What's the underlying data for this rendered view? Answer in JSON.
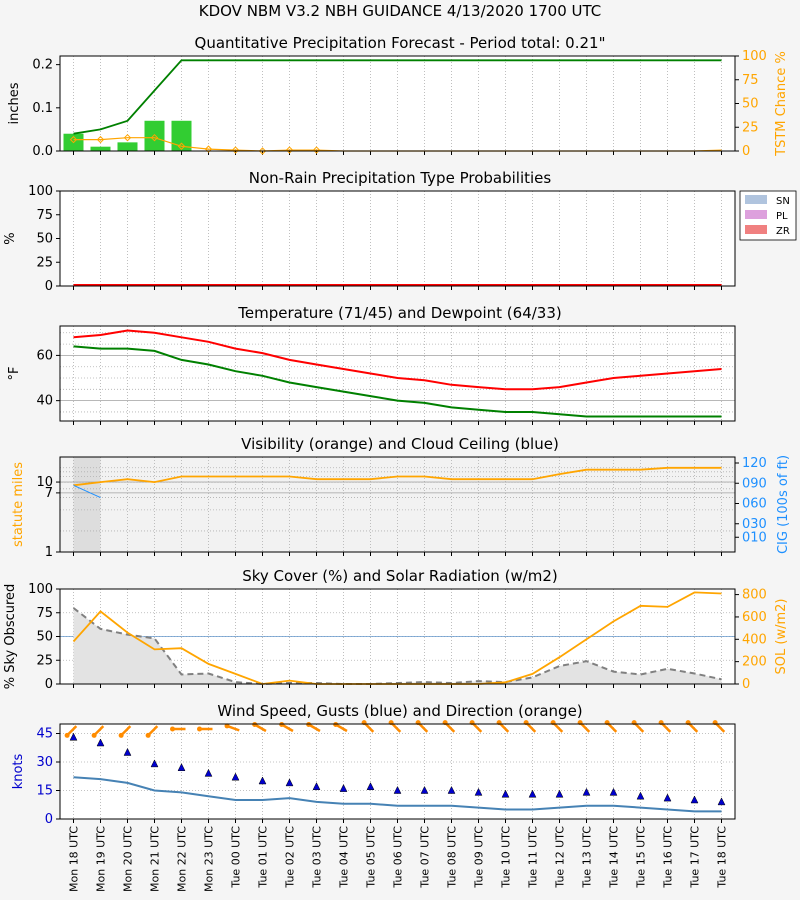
{
  "header": {
    "title": "KDOV   NBM V3.2 NBH GUIDANCE    4/13/2020  1700 UTC"
  },
  "colors": {
    "green": "#008000",
    "bar_green": "#32cd32",
    "orange": "#ffa500",
    "red": "#ff0000",
    "blue_axis": "#1e90ff",
    "navy": "#0000cd",
    "steel": "#4682b4",
    "gray_dash": "#808080",
    "sn": "#b0c4de",
    "pl": "#dda0dd",
    "zr": "#f08080"
  },
  "x_labels": [
    "Mon 18 UTC",
    "Mon 19 UTC",
    "Mon 20 UTC",
    "Mon 21 UTC",
    "Mon 22 UTC",
    "Mon 23 UTC",
    "Tue 00 UTC",
    "Tue 01 UTC",
    "Tue 02 UTC",
    "Tue 03 UTC",
    "Tue 04 UTC",
    "Tue 05 UTC",
    "Tue 06 UTC",
    "Tue 07 UTC",
    "Tue 08 UTC",
    "Tue 09 UTC",
    "Tue 10 UTC",
    "Tue 11 UTC",
    "Tue 12 UTC",
    "Tue 13 UTC",
    "Tue 14 UTC",
    "Tue 15 UTC",
    "Tue 16 UTC",
    "Tue 17 UTC",
    "Tue 18 UTC"
  ],
  "chart_data": [
    {
      "type": "bar",
      "title": "Quantitative Precipitation Forecast - Period total: 0.21\"",
      "ylabel": "inches",
      "ylabel_right": "TSTM Chance %",
      "ylim": [
        0,
        0.22
      ],
      "yticks": [
        "0.0",
        "0.1",
        "0.2"
      ],
      "ytick_vals": [
        0,
        0.1,
        0.2
      ],
      "ylim_right": [
        0,
        100
      ],
      "yticks_right": [
        "0",
        "25",
        "50",
        "75",
        "100"
      ],
      "series": [
        {
          "name": "QPF",
          "kind": "bar",
          "values": [
            0.04,
            0.01,
            0.02,
            0.07,
            0.07,
            0,
            0,
            0,
            0,
            0,
            0,
            0,
            0,
            0,
            0,
            0,
            0,
            0,
            0,
            0,
            0,
            0,
            0,
            0,
            0
          ]
        },
        {
          "name": "Accumulated",
          "kind": "line",
          "values": [
            0.04,
            0.05,
            0.07,
            0.14,
            0.21,
            0.21,
            0.21,
            0.21,
            0.21,
            0.21,
            0.21,
            0.21,
            0.21,
            0.21,
            0.21,
            0.21,
            0.21,
            0.21,
            0.21,
            0.21,
            0.21,
            0.21,
            0.21,
            0.21,
            0.21
          ]
        },
        {
          "name": "TSTM",
          "kind": "line-right",
          "values": [
            12,
            12,
            14,
            14,
            5,
            2,
            1,
            0,
            1,
            1,
            0,
            0,
            0,
            0,
            0,
            0,
            0,
            0,
            0,
            0,
            0,
            0,
            0,
            0,
            1
          ]
        }
      ]
    },
    {
      "type": "area",
      "title": "Non-Rain Precipitation Type Probabilities",
      "ylabel": "%",
      "ylim": [
        0,
        100
      ],
      "yticks": [
        "0",
        "25",
        "50",
        "75",
        "100"
      ],
      "legend": [
        "SN",
        "PL",
        "ZR"
      ],
      "legend_position": "right",
      "series": [
        {
          "name": "SN",
          "values": [
            0,
            0,
            0,
            0,
            0,
            0,
            0,
            0,
            0,
            0,
            0,
            0,
            0,
            0,
            0,
            0,
            0,
            0,
            0,
            0,
            0,
            0,
            0,
            0,
            0
          ]
        },
        {
          "name": "PL",
          "values": [
            0,
            0,
            0,
            0,
            0,
            0,
            0,
            0,
            0,
            0,
            0,
            0,
            0,
            0,
            0,
            0,
            0,
            0,
            0,
            0,
            0,
            0,
            0,
            0,
            0
          ]
        },
        {
          "name": "ZR",
          "values": [
            0,
            0,
            0,
            0,
            0,
            0,
            0,
            0,
            0,
            0,
            0,
            0,
            0,
            0,
            0,
            0,
            0,
            0,
            0,
            0,
            0,
            0,
            0,
            0,
            0
          ]
        }
      ]
    },
    {
      "type": "line",
      "title": "Temperature (71/45) and Dewpoint (64/33)",
      "ylabel": "°F",
      "ylim": [
        31,
        73
      ],
      "yticks": [
        "40",
        "60"
      ],
      "ytick_vals": [
        40,
        60
      ],
      "series": [
        {
          "name": "Temperature",
          "values": [
            68,
            69,
            71,
            70,
            68,
            66,
            63,
            61,
            58,
            56,
            54,
            52,
            50,
            49,
            47,
            46,
            45,
            45,
            46,
            48,
            50,
            51,
            52,
            53,
            54
          ]
        },
        {
          "name": "Dewpoint",
          "values": [
            64,
            63,
            63,
            62,
            58,
            56,
            53,
            51,
            48,
            46,
            44,
            42,
            40,
            39,
            37,
            36,
            35,
            35,
            34,
            33,
            33,
            33,
            33,
            33,
            33
          ]
        }
      ]
    },
    {
      "type": "line",
      "title": "Visibility (orange) and Cloud Ceiling (blue)",
      "ylabel": "statute miles",
      "ylabel_right": "CIG (100s of ft)",
      "yticks": [
        "1",
        "7",
        "10"
      ],
      "yticks_right": [
        "010",
        "030",
        "060",
        "090",
        "120"
      ],
      "series": [
        {
          "name": "Visibility",
          "values": [
            9,
            10,
            11,
            10,
            12,
            12,
            12,
            12,
            12,
            11,
            11,
            11,
            12,
            12,
            11,
            11,
            11,
            11,
            13,
            15,
            15,
            15,
            16,
            16,
            16
          ]
        },
        {
          "name": "Ceiling",
          "values": [
            9,
            6
          ]
        }
      ]
    },
    {
      "type": "line",
      "title": "Sky Cover (%) and Solar Radiation (w/m2)",
      "ylabel": "% Sky Obscured",
      "ylabel_right": "SOL (w/m2)",
      "ylim": [
        0,
        100
      ],
      "yticks": [
        "0",
        "25",
        "50",
        "75",
        "100"
      ],
      "ylim_right": [
        0,
        850
      ],
      "yticks_right": [
        "0",
        "200",
        "400",
        "600",
        "800"
      ],
      "series": [
        {
          "name": "Sky Cover",
          "values": [
            80,
            58,
            52,
            48,
            10,
            11,
            2,
            0,
            1,
            1,
            0,
            0,
            1,
            2,
            1,
            3,
            2,
            7,
            19,
            24,
            13,
            10,
            16,
            11,
            5
          ]
        },
        {
          "name": "Solar Radiation",
          "values": [
            380,
            650,
            460,
            310,
            320,
            180,
            90,
            0,
            30,
            0,
            0,
            0,
            0,
            0,
            0,
            0,
            15,
            90,
            240,
            400,
            560,
            700,
            690,
            820,
            810
          ]
        }
      ]
    },
    {
      "type": "line",
      "title": "Wind Speed, Gusts (blue) and Direction (orange)",
      "ylabel": "knots",
      "ylim": [
        0,
        50
      ],
      "yticks": [
        "0",
        "15",
        "30",
        "45"
      ],
      "ytick_vals": [
        0,
        15,
        30,
        45
      ],
      "series": [
        {
          "name": "Wind Speed",
          "values": [
            22,
            21,
            19,
            15,
            14,
            12,
            10,
            10,
            11,
            9,
            8,
            8,
            7,
            7,
            7,
            6,
            5,
            5,
            6,
            7,
            7,
            6,
            5,
            4,
            4
          ]
        },
        {
          "name": "Gusts",
          "values": [
            43,
            40,
            35,
            29,
            27,
            24,
            22,
            20,
            19,
            17,
            16,
            17,
            15,
            15,
            15,
            14,
            13,
            13,
            13,
            14,
            14,
            12,
            11,
            10,
            9
          ]
        },
        {
          "name": "Direction",
          "values": [
            225,
            225,
            225,
            225,
            270,
            270,
            290,
            300,
            300,
            300,
            300,
            315,
            315,
            315,
            315,
            315,
            315,
            315,
            315,
            315,
            315,
            315,
            315,
            315,
            315
          ]
        }
      ]
    }
  ]
}
